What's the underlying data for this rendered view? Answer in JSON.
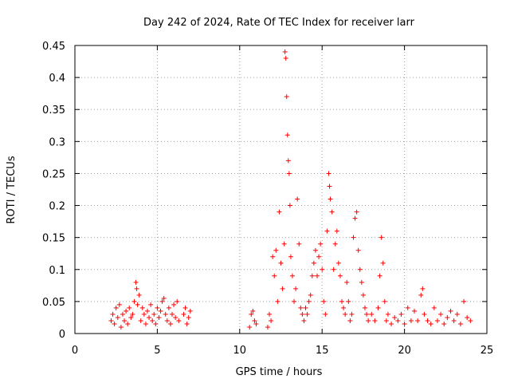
{
  "chart_data": {
    "type": "scatter",
    "title": "Day 242 of 2024, Rate Of TEC Index for receiver larr",
    "xlabel": "GPS time / hours",
    "ylabel": "ROTI / TECUs",
    "xlim": [
      0,
      25
    ],
    "ylim": [
      0,
      0.45
    ],
    "x_ticks": [
      "0",
      "5",
      "10",
      "15",
      "20",
      "25"
    ],
    "y_ticks": [
      "0",
      "0.05",
      "0.1",
      "0.15",
      "0.2",
      "0.25",
      "0.3",
      "0.35",
      "0.4",
      "0.45"
    ],
    "grid": true,
    "marker": "+",
    "color": "#ff0000",
    "series": [
      {
        "name": "ROTI",
        "points": [
          [
            2.2,
            0.02
          ],
          [
            2.3,
            0.03
          ],
          [
            2.4,
            0.015
          ],
          [
            2.5,
            0.04
          ],
          [
            2.6,
            0.025
          ],
          [
            2.7,
            0.045
          ],
          [
            2.8,
            0.01
          ],
          [
            2.9,
            0.03
          ],
          [
            3.0,
            0.02
          ],
          [
            3.1,
            0.035
          ],
          [
            3.2,
            0.015
          ],
          [
            3.3,
            0.04
          ],
          [
            3.4,
            0.025
          ],
          [
            3.5,
            0.03
          ],
          [
            3.6,
            0.05
          ],
          [
            3.7,
            0.08
          ],
          [
            3.75,
            0.07
          ],
          [
            3.8,
            0.045
          ],
          [
            3.9,
            0.06
          ],
          [
            4.0,
            0.02
          ],
          [
            4.1,
            0.04
          ],
          [
            4.2,
            0.03
          ],
          [
            4.3,
            0.015
          ],
          [
            4.4,
            0.035
          ],
          [
            4.5,
            0.025
          ],
          [
            4.6,
            0.045
          ],
          [
            4.7,
            0.02
          ],
          [
            4.8,
            0.03
          ],
          [
            4.9,
            0.015
          ],
          [
            5.0,
            0.04
          ],
          [
            5.1,
            0.025
          ],
          [
            5.2,
            0.035
          ],
          [
            5.3,
            0.05
          ],
          [
            5.4,
            0.055
          ],
          [
            5.5,
            0.03
          ],
          [
            5.6,
            0.02
          ],
          [
            5.7,
            0.04
          ],
          [
            5.8,
            0.015
          ],
          [
            5.9,
            0.03
          ],
          [
            6.0,
            0.045
          ],
          [
            6.1,
            0.025
          ],
          [
            6.2,
            0.05
          ],
          [
            6.3,
            0.02
          ],
          [
            6.6,
            0.03
          ],
          [
            6.7,
            0.04
          ],
          [
            6.8,
            0.015
          ],
          [
            6.9,
            0.025
          ],
          [
            7.0,
            0.035
          ],
          [
            10.6,
            0.01
          ],
          [
            10.7,
            0.03
          ],
          [
            10.8,
            0.035
          ],
          [
            10.9,
            0.02
          ],
          [
            11.0,
            0.015
          ],
          [
            11.7,
            0.01
          ],
          [
            11.8,
            0.03
          ],
          [
            11.9,
            0.02
          ],
          [
            12.0,
            0.12
          ],
          [
            12.1,
            0.09
          ],
          [
            12.2,
            0.13
          ],
          [
            12.3,
            0.05
          ],
          [
            12.4,
            0.19
          ],
          [
            12.5,
            0.11
          ],
          [
            12.6,
            0.07
          ],
          [
            12.7,
            0.14
          ],
          [
            12.75,
            0.44
          ],
          [
            12.8,
            0.43
          ],
          [
            12.85,
            0.37
          ],
          [
            12.9,
            0.31
          ],
          [
            12.95,
            0.27
          ],
          [
            13.0,
            0.25
          ],
          [
            13.05,
            0.2
          ],
          [
            13.1,
            0.12
          ],
          [
            13.2,
            0.09
          ],
          [
            13.3,
            0.05
          ],
          [
            13.4,
            0.07
          ],
          [
            13.5,
            0.21
          ],
          [
            13.6,
            0.14
          ],
          [
            13.7,
            0.04
          ],
          [
            13.8,
            0.03
          ],
          [
            13.9,
            0.02
          ],
          [
            14.0,
            0.04
          ],
          [
            14.1,
            0.03
          ],
          [
            14.2,
            0.05
          ],
          [
            14.3,
            0.06
          ],
          [
            14.4,
            0.09
          ],
          [
            14.5,
            0.11
          ],
          [
            14.6,
            0.13
          ],
          [
            14.7,
            0.09
          ],
          [
            14.8,
            0.12
          ],
          [
            14.9,
            0.14
          ],
          [
            15.0,
            0.1
          ],
          [
            15.1,
            0.05
          ],
          [
            15.2,
            0.03
          ],
          [
            15.3,
            0.16
          ],
          [
            15.4,
            0.25
          ],
          [
            15.45,
            0.23
          ],
          [
            15.5,
            0.21
          ],
          [
            15.6,
            0.19
          ],
          [
            15.7,
            0.1
          ],
          [
            15.8,
            0.14
          ],
          [
            15.9,
            0.16
          ],
          [
            16.0,
            0.11
          ],
          [
            16.1,
            0.09
          ],
          [
            16.2,
            0.05
          ],
          [
            16.3,
            0.04
          ],
          [
            16.4,
            0.03
          ],
          [
            16.5,
            0.08
          ],
          [
            16.6,
            0.05
          ],
          [
            16.7,
            0.02
          ],
          [
            16.8,
            0.03
          ],
          [
            16.9,
            0.15
          ],
          [
            17.0,
            0.18
          ],
          [
            17.1,
            0.19
          ],
          [
            17.2,
            0.13
          ],
          [
            17.3,
            0.1
          ],
          [
            17.4,
            0.08
          ],
          [
            17.5,
            0.06
          ],
          [
            17.6,
            0.04
          ],
          [
            17.7,
            0.03
          ],
          [
            17.8,
            0.02
          ],
          [
            18.0,
            0.03
          ],
          [
            18.2,
            0.02
          ],
          [
            18.4,
            0.04
          ],
          [
            18.5,
            0.09
          ],
          [
            18.6,
            0.15
          ],
          [
            18.7,
            0.11
          ],
          [
            18.8,
            0.05
          ],
          [
            18.9,
            0.02
          ],
          [
            19.0,
            0.03
          ],
          [
            19.2,
            0.015
          ],
          [
            19.4,
            0.025
          ],
          [
            19.6,
            0.02
          ],
          [
            19.8,
            0.03
          ],
          [
            20.0,
            0.015
          ],
          [
            20.2,
            0.04
          ],
          [
            20.4,
            0.02
          ],
          [
            20.6,
            0.035
          ],
          [
            20.8,
            0.02
          ],
          [
            21.0,
            0.06
          ],
          [
            21.1,
            0.07
          ],
          [
            21.2,
            0.03
          ],
          [
            21.4,
            0.02
          ],
          [
            21.6,
            0.015
          ],
          [
            21.8,
            0.04
          ],
          [
            22.0,
            0.02
          ],
          [
            22.2,
            0.03
          ],
          [
            22.4,
            0.015
          ],
          [
            22.6,
            0.025
          ],
          [
            22.8,
            0.035
          ],
          [
            23.0,
            0.02
          ],
          [
            23.2,
            0.03
          ],
          [
            23.4,
            0.015
          ],
          [
            23.6,
            0.05
          ],
          [
            23.8,
            0.025
          ],
          [
            24.0,
            0.02
          ]
        ]
      }
    ]
  }
}
